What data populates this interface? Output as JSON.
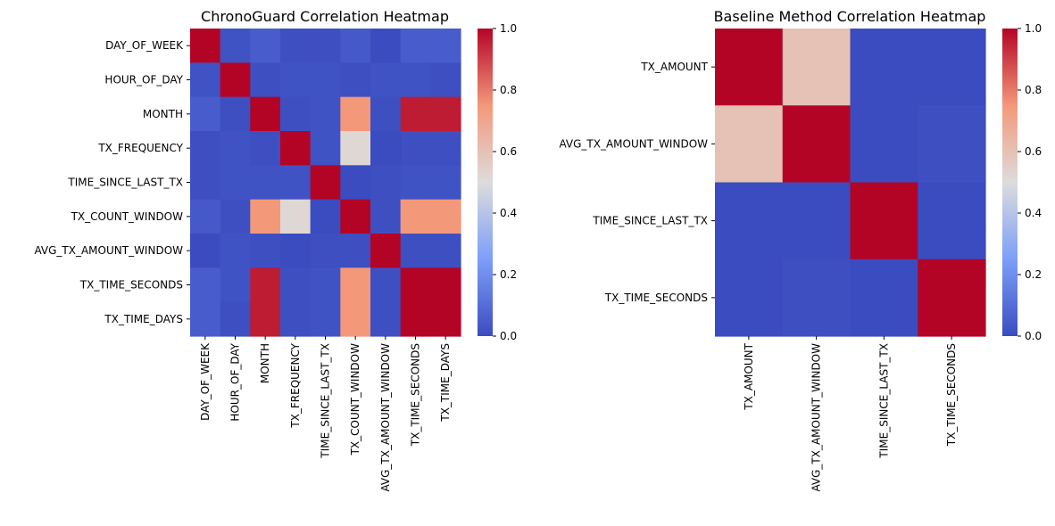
{
  "chart_data": [
    {
      "type": "heatmap",
      "title": "ChronoGuard Correlation Heatmap",
      "xlabel": "",
      "ylabel": "",
      "colormap": "coolwarm",
      "vmin": 0.0,
      "vmax": 1.0,
      "x_categories": [
        "DAY_OF_WEEK",
        "HOUR_OF_DAY",
        "MONTH",
        "TX_FREQUENCY",
        "TIME_SINCE_LAST_TX",
        "TX_COUNT_WINDOW",
        "AVG_TX_AMOUNT_WINDOW",
        "TX_TIME_SECONDS",
        "TX_TIME_DAYS"
      ],
      "y_categories": [
        "DAY_OF_WEEK",
        "HOUR_OF_DAY",
        "MONTH",
        "TX_FREQUENCY",
        "TIME_SINCE_LAST_TX",
        "TX_COUNT_WINDOW",
        "AVG_TX_AMOUNT_WINDOW",
        "TX_TIME_SECONDS",
        "TX_TIME_DAYS"
      ],
      "values": [
        [
          1.0,
          0.02,
          0.05,
          0.01,
          0.01,
          0.04,
          0.0,
          0.05,
          0.05
        ],
        [
          0.02,
          1.0,
          0.01,
          0.02,
          0.02,
          0.01,
          0.02,
          0.02,
          0.01
        ],
        [
          0.05,
          0.01,
          1.0,
          0.01,
          0.02,
          0.75,
          0.01,
          0.96,
          0.96
        ],
        [
          0.01,
          0.02,
          0.01,
          1.0,
          0.02,
          0.52,
          0.0,
          0.01,
          0.01
        ],
        [
          0.01,
          0.02,
          0.02,
          0.02,
          1.0,
          0.0,
          0.01,
          0.02,
          0.02
        ],
        [
          0.04,
          0.01,
          0.75,
          0.52,
          0.0,
          1.0,
          0.01,
          0.75,
          0.75
        ],
        [
          0.0,
          0.02,
          0.01,
          0.0,
          0.01,
          0.01,
          1.0,
          0.01,
          0.01
        ],
        [
          0.05,
          0.02,
          0.96,
          0.01,
          0.02,
          0.75,
          0.01,
          1.0,
          1.0
        ],
        [
          0.05,
          0.01,
          0.96,
          0.01,
          0.02,
          0.75,
          0.01,
          1.0,
          1.0
        ]
      ],
      "colorbar_ticks": [
        "0.0",
        "0.2",
        "0.4",
        "0.6",
        "0.8",
        "1.0"
      ]
    },
    {
      "type": "heatmap",
      "title": "Baseline Method Correlation Heatmap",
      "xlabel": "",
      "ylabel": "",
      "colormap": "coolwarm",
      "vmin": 0.0,
      "vmax": 1.0,
      "x_categories": [
        "TX_AMOUNT",
        "AVG_TX_AMOUNT_WINDOW",
        "TIME_SINCE_LAST_TX",
        "TX_TIME_SECONDS"
      ],
      "y_categories": [
        "TX_AMOUNT",
        "AVG_TX_AMOUNT_WINDOW",
        "TIME_SINCE_LAST_TX",
        "TX_TIME_SECONDS"
      ],
      "values": [
        [
          1.0,
          0.6,
          0.0,
          0.0
        ],
        [
          0.6,
          1.0,
          0.0,
          0.01
        ],
        [
          0.0,
          0.0,
          1.0,
          0.0
        ],
        [
          0.0,
          0.01,
          0.0,
          1.0
        ]
      ],
      "colorbar_ticks": [
        "0.0",
        "0.2",
        "0.4",
        "0.6",
        "0.8",
        "1.0"
      ]
    }
  ]
}
